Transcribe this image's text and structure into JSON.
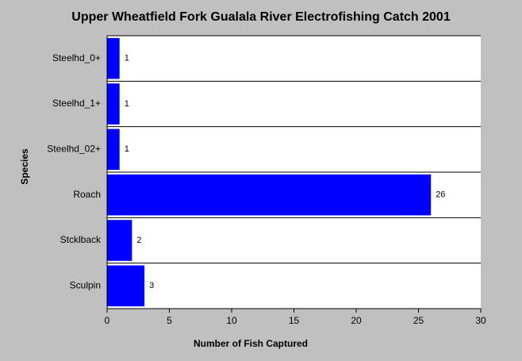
{
  "chart_data": {
    "type": "bar",
    "orientation": "horizontal",
    "title": "Upper Wheatfield Fork Gualala River Electrofishing Catch 2001",
    "x_label": "Number of Fish Captured",
    "y_label": "Species",
    "categories": [
      "Steelhd_0+",
      "Steelhd_1+",
      "Steelhd_02+",
      "Roach",
      "Stcklback",
      "Sculpin"
    ],
    "values": [
      1,
      1,
      1,
      26,
      2,
      3
    ],
    "color": "#0000ff",
    "xlim": [
      0,
      30
    ],
    "xticks": [
      0,
      5,
      10,
      15,
      20,
      25,
      30
    ]
  }
}
